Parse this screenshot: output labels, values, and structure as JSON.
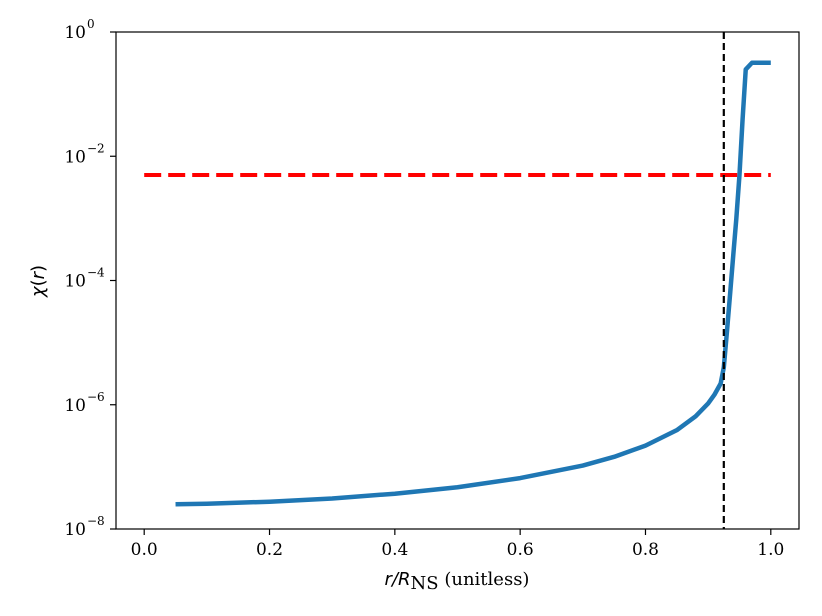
{
  "chart_data": {
    "type": "line",
    "xlabel": {
      "var": "r",
      "slash": "/",
      "R": "R",
      "sub": "NS",
      "unit": " (unitless)"
    },
    "ylabel": {
      "chi": "χ",
      "open": "(",
      "var": "r",
      "close": ")"
    },
    "xlim": [
      -0.045,
      1.045
    ],
    "ylim_log10": [
      -8,
      0
    ],
    "yscale": "log",
    "x_ticks": [
      {
        "value": 0.0,
        "label": "0.0"
      },
      {
        "value": 0.2,
        "label": "0.2"
      },
      {
        "value": 0.4,
        "label": "0.4"
      },
      {
        "value": 0.6,
        "label": "0.6"
      },
      {
        "value": 0.8,
        "label": "0.8"
      },
      {
        "value": 1.0,
        "label": "1.0"
      }
    ],
    "y_ticks": [
      {
        "exp": -8,
        "base": "10",
        "sup": "−8"
      },
      {
        "exp": -6,
        "base": "10",
        "sup": "−6"
      },
      {
        "exp": -4,
        "base": "10",
        "sup": "−4"
      },
      {
        "exp": -2,
        "base": "10",
        "sup": "−2"
      },
      {
        "exp": 0,
        "base": "10",
        "sup": "0"
      }
    ],
    "grid": false,
    "series": [
      {
        "style": "solid",
        "color": "#1f77b4",
        "x": [
          0.05,
          0.1,
          0.2,
          0.3,
          0.4,
          0.5,
          0.6,
          0.7,
          0.75,
          0.8,
          0.85,
          0.88,
          0.9,
          0.91,
          0.92,
          0.925,
          0.93,
          0.935,
          0.94,
          0.945,
          0.95,
          0.955,
          0.96,
          0.97,
          1.0
        ],
        "y": [
          2.5e-08,
          2.55e-08,
          2.75e-08,
          3.1e-08,
          3.7e-08,
          4.7e-08,
          6.6e-08,
          1.05e-07,
          1.45e-07,
          2.2e-07,
          3.9e-07,
          6.5e-07,
          1.05e-06,
          1.45e-06,
          2.2e-06,
          4e-06,
          1.5e-05,
          6e-05,
          0.00025,
          0.001,
          0.005,
          0.04,
          0.25,
          0.32,
          0.32
        ]
      },
      {
        "style": "dashed",
        "color": "#ff0000",
        "x": [
          0.0,
          1.0
        ],
        "y": [
          0.005,
          0.005
        ]
      }
    ],
    "vlines": [
      {
        "x": 0.925,
        "color": "#000000",
        "style": "dashed"
      }
    ]
  }
}
